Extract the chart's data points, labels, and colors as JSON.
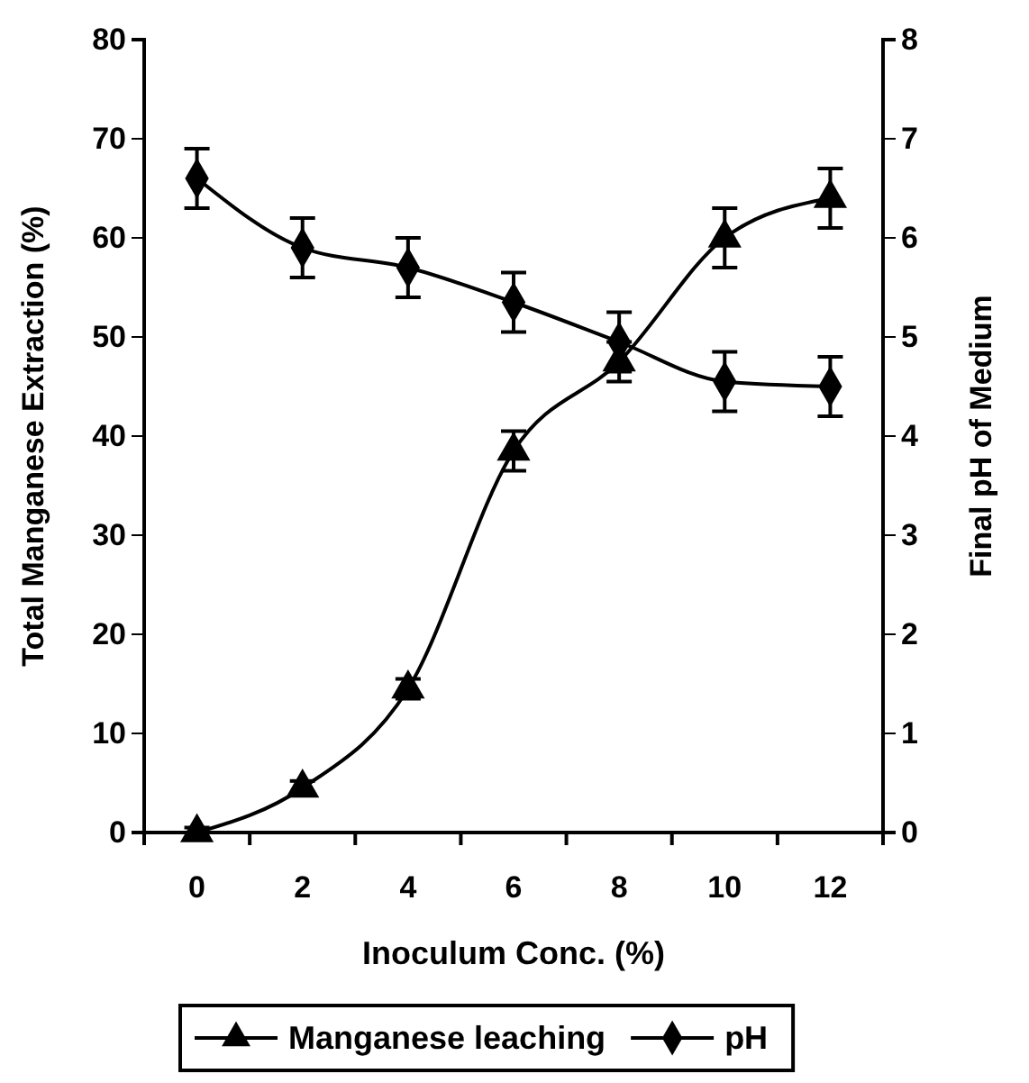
{
  "chart_data": {
    "type": "line",
    "xlabel": "Inoculum Conc. (%)",
    "ylabel": "Total Manganese Extraction (%)",
    "y2label": "Final pH of Medium",
    "categories": [
      "0",
      "2",
      "4",
      "6",
      "8",
      "10",
      "12"
    ],
    "ylim": [
      0,
      80
    ],
    "yticks": [
      0,
      10,
      20,
      30,
      40,
      50,
      60,
      70,
      80
    ],
    "y2lim": [
      0,
      8
    ],
    "y2ticks": [
      0,
      1,
      2,
      3,
      4,
      5,
      6,
      7,
      8
    ],
    "series": [
      {
        "name": "Manganese leaching",
        "color": "#000000",
        "marker": "triangle",
        "values": [
          0,
          4.5,
          14.5,
          38.5,
          47.5,
          60,
          64
        ],
        "errors": [
          0.5,
          0.7,
          1,
          2,
          2,
          3,
          3
        ]
      },
      {
        "name": "pH",
        "color": "#000000",
        "marker": "diamond",
        "axis": "y2",
        "values": [
          6.6,
          5.9,
          5.7,
          5.35,
          4.95,
          4.55,
          4.5
        ],
        "errors": [
          0.3,
          0.3,
          0.3,
          0.3,
          0.3,
          0.3,
          0.3
        ]
      }
    ],
    "grid": false,
    "legend": "bottom"
  }
}
